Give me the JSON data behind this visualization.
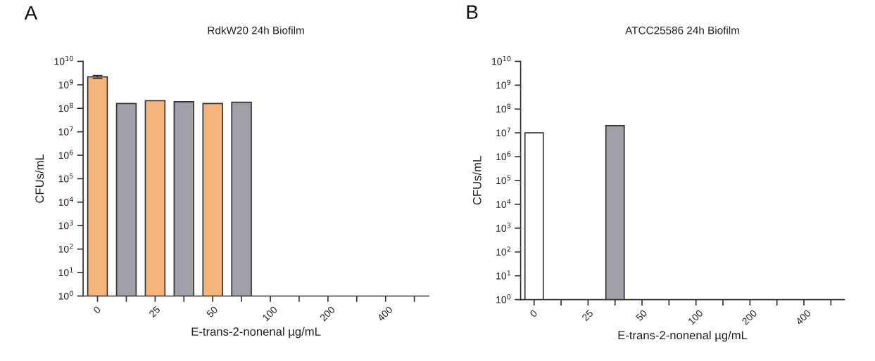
{
  "chart_data": [
    {
      "type": "bar",
      "title": "RdkW20 24h Biofilm",
      "xlabel": "E-trans-2-nonenal µg/mL",
      "ylabel": "CFUs/mL",
      "annotations": [
        "A"
      ],
      "categories": [
        "0",
        null,
        "25",
        null,
        "50",
        null,
        "100",
        null,
        "200",
        null,
        "400",
        null
      ],
      "values": [
        2200000000,
        160000000,
        210000000,
        190000000,
        160000000,
        180000000,
        null,
        null,
        null,
        null,
        null,
        null
      ],
      "errors": [
        300000000,
        null,
        null,
        null,
        null,
        null,
        null,
        null,
        null,
        null,
        null,
        null
      ],
      "colors": [
        "#f5b57a",
        "#a0a0a8",
        "#f5b57a",
        "#a0a0a8",
        "#f5b57a",
        "#a0a0a8",
        "#f5b57a",
        "#a0a0a8",
        "#f5b57a",
        "#a0a0a8",
        "#f5b57a",
        "#a0a0a8"
      ],
      "log": "y",
      "ylim": [
        1,
        10000000000
      ],
      "yticks": [
        {
          "value": 1,
          "label": "10$^{0}$"
        },
        {
          "value": 10,
          "label": "10$^{1}$"
        },
        {
          "value": 100,
          "label": "10$^{2}$"
        },
        {
          "value": 1000,
          "label": "10$^{3}$"
        },
        {
          "value": 10000,
          "label": "10$^{4}$"
        },
        {
          "value": 100000,
          "label": "10$^{5}$"
        },
        {
          "value": 1000000,
          "label": "10$^{6}$"
        },
        {
          "value": 10000000,
          "label": "10$^{7}$"
        },
        {
          "value": 100000000,
          "label": "10$^{8}$"
        },
        {
          "value": 1000000000,
          "label": "10$^{9}$"
        },
        {
          "value": 10000000000,
          "label": "10$^{10}$"
        }
      ],
      "grid": false,
      "legend": false
    },
    {
      "type": "bar",
      "title": "ATCC25586 24h Biofilm",
      "xlabel": "E-trans-2-nonenal µg/mL",
      "ylabel": "CFUs/mL",
      "annotations": [
        "B"
      ],
      "categories": [
        "0",
        null,
        "25",
        null,
        "50",
        null,
        "100",
        null,
        "200",
        null,
        "400",
        null
      ],
      "values": [
        10000000,
        null,
        null,
        20000000,
        null,
        null,
        null,
        null,
        null,
        null,
        null,
        null
      ],
      "colors": [
        "#ffffff",
        "#a0a0a8",
        "#ffffff",
        "#a0a0a8",
        "#ffffff",
        "#a0a0a8",
        "#ffffff",
        "#a0a0a8",
        "#ffffff",
        "#a0a0a8",
        "#ffffff",
        "#a0a0a8"
      ],
      "log": "y",
      "ylim": [
        1,
        10000000000
      ],
      "yticks": [
        {
          "value": 1,
          "label": "10$^{0}$"
        },
        {
          "value": 10,
          "label": "10$^{1}$"
        },
        {
          "value": 100,
          "label": "10$^{2}$"
        },
        {
          "value": 1000,
          "label": "10$^{3}$"
        },
        {
          "value": 10000,
          "label": "10$^{4}$"
        },
        {
          "value": 100000,
          "label": "10$^{5}$"
        },
        {
          "value": 1000000,
          "label": "10$^{6}$"
        },
        {
          "value": 10000000,
          "label": "10$^{7}$"
        },
        {
          "value": 100000000,
          "label": "10$^{8}$"
        },
        {
          "value": 1000000000,
          "label": "10$^{9}$"
        },
        {
          "value": 10000000000,
          "label": "10$^{10}$"
        }
      ],
      "grid": false,
      "legend": false
    }
  ]
}
